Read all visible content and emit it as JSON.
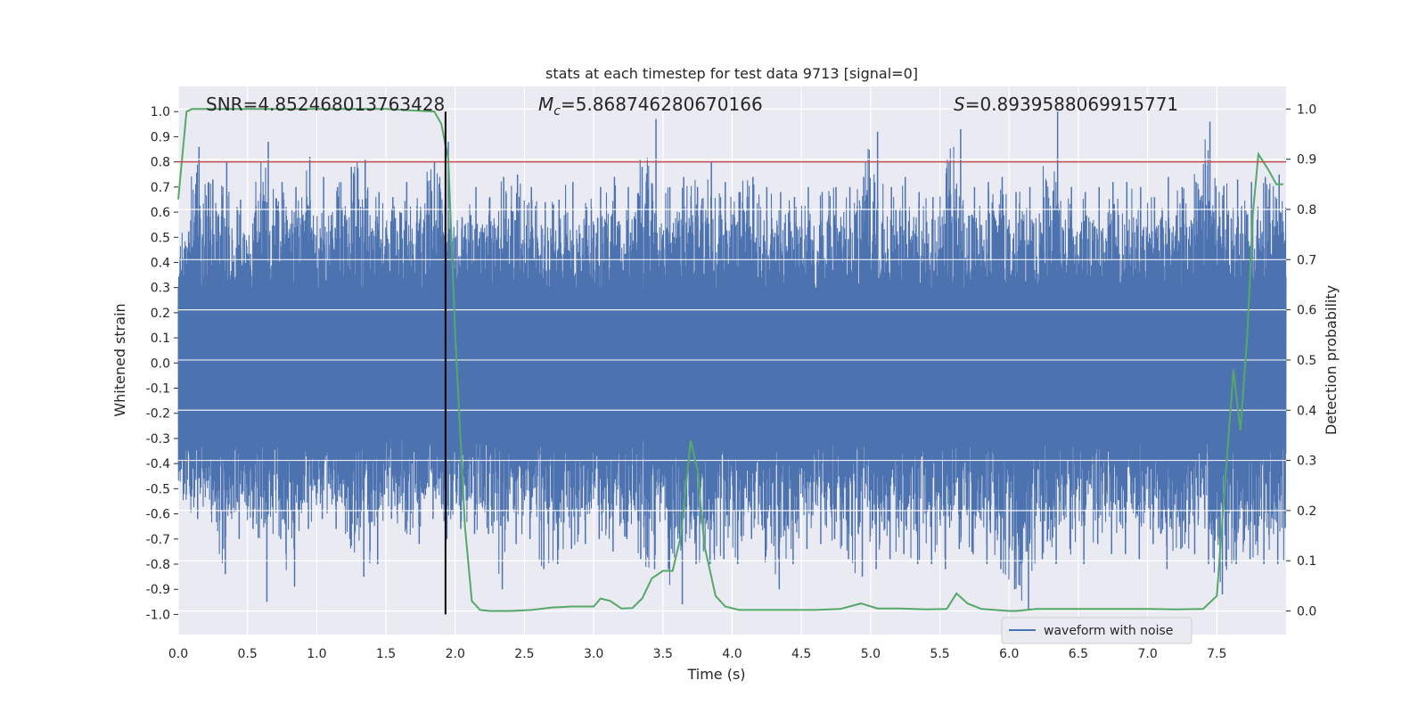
{
  "chart_data": {
    "type": "line",
    "title": "stats at each timestep for test data 9713 [signal=0]",
    "xlabel": "Time (s)",
    "ylabel": "Whitened strain",
    "y2label": "Detection probability",
    "xlim": [
      0.0,
      8.0
    ],
    "ylim": [
      -1.08,
      1.1
    ],
    "y2lim": [
      -0.047,
      1.045
    ],
    "x_ticks": [
      "0.0",
      "0.5",
      "1.0",
      "1.5",
      "2.0",
      "2.5",
      "3.0",
      "3.5",
      "4.0",
      "4.5",
      "5.0",
      "5.5",
      "6.0",
      "6.5",
      "7.0",
      "7.5"
    ],
    "y_ticks": [
      "1.0",
      "0.9",
      "0.8",
      "0.7",
      "0.6",
      "0.5",
      "0.4",
      "0.3",
      "0.2",
      "0.1",
      "0.0",
      "-0.1",
      "-0.2",
      "-0.3",
      "-0.4",
      "-0.5",
      "-0.6",
      "-0.7",
      "-0.8",
      "-0.9",
      "-1.0"
    ],
    "y2_ticks": [
      "1.0",
      "0.9",
      "0.8",
      "0.7",
      "0.6",
      "0.5",
      "0.4",
      "0.3",
      "0.2",
      "0.1",
      "0.0"
    ],
    "grid": true,
    "legend_position": "bottom-right",
    "annotations": [
      {
        "prefix": "SNR",
        "sub": "",
        "value": "=4.852468013763428",
        "italic": false
      },
      {
        "prefix": "M",
        "sub": "c",
        "value": "=5.868746280670166",
        "italic": true
      },
      {
        "prefix": "S",
        "sub": "",
        "value": "=0.8939588069915771",
        "italic": true
      }
    ],
    "threshold_line": {
      "y": 0.8,
      "color": "#c44e52"
    },
    "vertical_marker": {
      "x": 1.93,
      "color": "#000000"
    },
    "series": [
      {
        "name": "waveform with noise",
        "axis": "left",
        "color": "#4c72b0",
        "envelope_step": 0.1,
        "upper": [
          0.42,
          0.86,
          0.73,
          0.8,
          0.65,
          0.58,
          0.88,
          0.72,
          0.7,
          0.82,
          0.74,
          0.7,
          0.78,
          0.81,
          0.68,
          0.66,
          0.72,
          0.62,
          0.8,
          0.88,
          0.58,
          0.7,
          0.66,
          0.74,
          0.75,
          0.7,
          0.64,
          0.65,
          0.72,
          0.62,
          0.7,
          0.74,
          0.7,
          0.78,
          0.97,
          0.7,
          0.74,
          0.7,
          0.8,
          0.72,
          0.68,
          0.74,
          0.7,
          0.68,
          0.66,
          0.7,
          0.68,
          0.7,
          0.7,
          0.74,
          0.92,
          0.7,
          0.74,
          0.68,
          0.66,
          0.7,
          0.93,
          0.7,
          0.72,
          0.74,
          0.68,
          0.7,
          0.66,
          1.0,
          0.7,
          0.68,
          0.7,
          0.72,
          0.72,
          0.7,
          0.66,
          0.74,
          0.7,
          0.72,
          0.96,
          0.7,
          0.73,
          0.72,
          0.74,
          0.75
        ],
        "lower": [
          -0.52,
          -0.62,
          -0.6,
          -0.84,
          -0.7,
          -0.66,
          -0.95,
          -0.7,
          -0.89,
          -0.66,
          -0.62,
          -0.66,
          -0.7,
          -0.85,
          -0.8,
          -0.62,
          -0.66,
          -0.72,
          -0.62,
          -0.7,
          -0.66,
          -0.68,
          -0.68,
          -0.9,
          -0.72,
          -0.7,
          -0.82,
          -0.8,
          -0.74,
          -0.72,
          -0.7,
          -0.75,
          -0.7,
          -0.78,
          -0.82,
          -0.82,
          -0.96,
          -0.8,
          -0.8,
          -0.78,
          -0.8,
          -0.7,
          -0.74,
          -0.9,
          -0.8,
          -0.74,
          -0.72,
          -0.7,
          -0.78,
          -0.85,
          -0.82,
          -0.78,
          -0.76,
          -0.8,
          -0.8,
          -0.82,
          -0.74,
          -0.76,
          -0.8,
          -0.82,
          -0.9,
          -0.98,
          -0.78,
          -0.8,
          -0.74,
          -0.8,
          -0.72,
          -0.76,
          -0.76,
          -0.78,
          -0.72,
          -0.82,
          -0.74,
          -0.76,
          -0.8,
          -0.92,
          -0.8,
          -0.78,
          -0.8,
          -0.8
        ]
      },
      {
        "name": "Detection probability",
        "axis": "right",
        "color": "#55a868",
        "x": [
          0.0,
          0.06,
          0.1,
          0.2,
          0.5,
          1.0,
          1.5,
          1.85,
          1.9,
          1.95,
          2.0,
          2.07,
          2.12,
          2.18,
          2.25,
          2.4,
          2.55,
          2.7,
          2.85,
          3.0,
          3.05,
          3.12,
          3.2,
          3.28,
          3.35,
          3.42,
          3.5,
          3.57,
          3.63,
          3.7,
          3.75,
          3.8,
          3.88,
          3.95,
          4.05,
          4.2,
          4.4,
          4.6,
          4.78,
          4.93,
          5.05,
          5.2,
          5.4,
          5.55,
          5.62,
          5.7,
          5.8,
          6.0,
          6.05,
          6.2,
          6.4,
          6.6,
          6.8,
          7.0,
          7.2,
          7.4,
          7.5,
          7.55,
          7.62,
          7.67,
          7.72,
          7.76,
          7.8,
          7.87,
          7.93,
          7.98
        ],
        "y": [
          0.82,
          0.995,
          1.0,
          1.0,
          1.0,
          1.0,
          1.0,
          0.995,
          0.97,
          0.9,
          0.55,
          0.17,
          0.02,
          0.002,
          0.0,
          0.0,
          0.002,
          0.007,
          0.009,
          0.009,
          0.025,
          0.02,
          0.005,
          0.006,
          0.025,
          0.065,
          0.08,
          0.08,
          0.15,
          0.34,
          0.28,
          0.13,
          0.03,
          0.009,
          0.002,
          0.002,
          0.002,
          0.002,
          0.004,
          0.015,
          0.005,
          0.005,
          0.003,
          0.004,
          0.035,
          0.015,
          0.004,
          0.0,
          0.0,
          0.004,
          0.004,
          0.004,
          0.004,
          0.004,
          0.003,
          0.004,
          0.03,
          0.22,
          0.48,
          0.36,
          0.55,
          0.79,
          0.91,
          0.88,
          0.85,
          0.85
        ]
      }
    ]
  }
}
